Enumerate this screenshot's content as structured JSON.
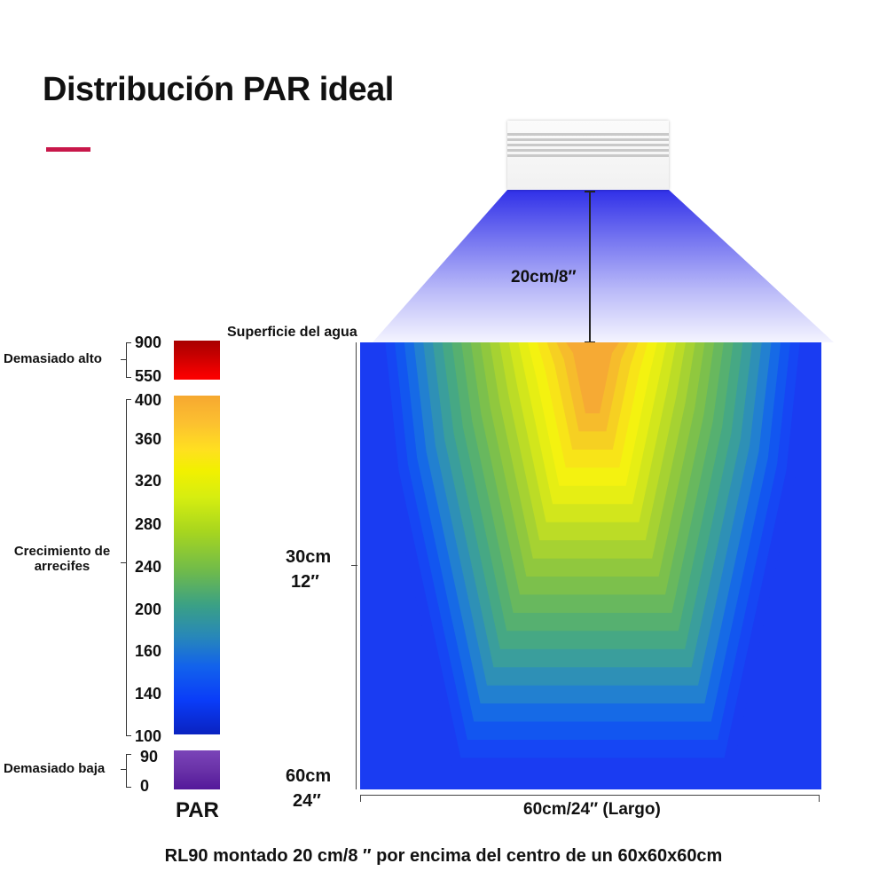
{
  "title": "Distribución PAR ideal",
  "colors": {
    "accent": "#c8174a",
    "too_high": "#d60000",
    "too_low": "#6a2ca8",
    "blue": "#1a3cf2",
    "yellow": "#f0f000",
    "orange": "#f6a830"
  },
  "fixture": {
    "distance_label": "20cm/8″",
    "water_surface_label": "Superficie del agua"
  },
  "tank": {
    "depth_mid_cm": "30cm",
    "depth_mid_in": "12″",
    "depth_bottom_cm": "60cm",
    "depth_bottom_in": "24″",
    "length_label": "60cm/24″  (Largo)"
  },
  "scale": {
    "title": "PAR",
    "categories": {
      "too_high": "Demasiado alto",
      "reef_growth_line1": "Crecimiento de",
      "reef_growth_line2": "arrecifes",
      "too_low": "Demasiado baja"
    },
    "ticks_high": [
      "900",
      "550"
    ],
    "ticks_mid": [
      "400",
      "360",
      "320",
      "280",
      "240",
      "200",
      "160",
      "140",
      "100"
    ],
    "ticks_low": [
      "90",
      "0"
    ]
  },
  "caption": "RL90  montado 20 cm/8  ″ por encima del centro de un 60x60x60cm"
}
